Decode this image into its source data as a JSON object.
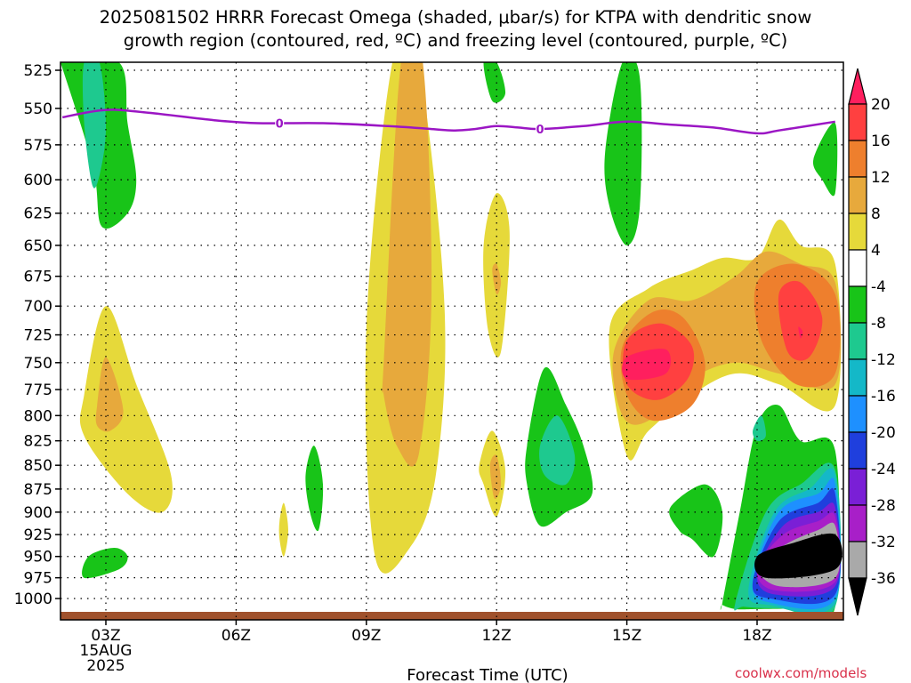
{
  "chart_data": {
    "type": "heatmap",
    "title_line1": "2025081502 HRRR Forecast Omega (shaded, μbar/s) for KTPA with dendritic snow",
    "title_line2": "growth region (contoured, red, ºC) and freezing level (contoured, purple, ºC)",
    "xlabel": "Forecast Time (UTC)",
    "x_ticks": [
      {
        "label": "03Z",
        "hour": 3
      },
      {
        "label": "06Z",
        "hour": 6
      },
      {
        "label": "09Z",
        "hour": 9
      },
      {
        "label": "12Z",
        "hour": 12
      },
      {
        "label": "15Z",
        "hour": 15
      },
      {
        "label": "18Z",
        "hour": 18
      }
    ],
    "x_date_line1": "15AUG",
    "x_date_line2": "2025",
    "xlim": [
      2.0,
      19.8
    ],
    "y_ticks": [
      525,
      550,
      575,
      600,
      625,
      650,
      675,
      700,
      725,
      750,
      775,
      800,
      825,
      850,
      875,
      900,
      925,
      950,
      975,
      1000
    ],
    "ylim": [
      1015,
      515
    ],
    "y_scale": "log-pressure",
    "grid": true,
    "colorbar": {
      "labels": [
        "20",
        "16",
        "12",
        "8",
        "4",
        "-4",
        "-8",
        "-12",
        "-16",
        "-20",
        "-24",
        "-28",
        "-32",
        "-36"
      ],
      "colors": [
        "#ff1f5e",
        "#ff4040",
        "#ee7f2d",
        "#e7a93c",
        "#e6d93a",
        "#ffffff",
        "#18c418",
        "#1ec98f",
        "#14b8c8",
        "#1e90ff",
        "#1f3fdd",
        "#7a1fd6",
        "#a81fc8",
        "#a9a9a9",
        "#000000"
      ]
    },
    "freezing_level": {
      "label": "0",
      "points": [
        [
          2.0,
          556
        ],
        [
          3.0,
          551
        ],
        [
          4.0,
          553
        ],
        [
          5.5,
          558
        ],
        [
          6.5,
          560
        ],
        [
          8.0,
          560
        ],
        [
          9.5,
          562
        ],
        [
          10.5,
          564
        ],
        [
          11.0,
          565
        ],
        [
          11.5,
          564
        ],
        [
          12.0,
          562
        ],
        [
          12.5,
          563
        ],
        [
          13.0,
          564
        ],
        [
          14.0,
          562
        ],
        [
          15.0,
          559
        ],
        [
          16.0,
          561
        ],
        [
          17.0,
          563
        ],
        [
          18.0,
          567
        ],
        [
          18.5,
          565
        ],
        [
          19.8,
          559
        ]
      ]
    },
    "omega_regions": [
      {
        "value": -8,
        "hr": [
          1.9,
          3.3,
          3.5,
          3.7,
          3.5,
          2.9,
          2.7,
          1.9
        ],
        "p": [
          515,
          515,
          560,
          600,
          625,
          635,
          590,
          515
        ]
      },
      {
        "value": -12,
        "hr": [
          2.5,
          2.85,
          3.0,
          2.9,
          2.7,
          2.5
        ],
        "p": [
          515,
          515,
          560,
          590,
          605,
          560
        ]
      },
      {
        "value": 4,
        "hr": [
          2.5,
          3.0,
          3.7,
          4.5,
          4.3,
          3.5,
          2.5
        ],
        "p": [
          780,
          700,
          770,
          860,
          900,
          880,
          820
        ]
      },
      {
        "value": 8,
        "hr": [
          2.8,
          3.0,
          3.4,
          3.1,
          2.8
        ],
        "p": [
          790,
          745,
          795,
          815,
          810
        ]
      },
      {
        "value": 4,
        "hr": [
          9.0,
          9.6,
          10.2,
          10.8,
          10.6,
          10.0,
          9.2
        ],
        "p": [
          720,
          515,
          515,
          700,
          860,
          940,
          950
        ]
      },
      {
        "value": 8,
        "hr": [
          9.4,
          9.8,
          10.3,
          10.5,
          10.2,
          9.7,
          9.4
        ],
        "p": [
          750,
          515,
          515,
          690,
          840,
          830,
          780
        ]
      },
      {
        "value": -8,
        "hr": [
          2.6,
          3.2,
          3.5,
          3.3,
          2.5
        ],
        "p": [
          950,
          940,
          950,
          965,
          975
        ]
      },
      {
        "value": 4,
        "hr": [
          7.0,
          7.1,
          7.2,
          7.1,
          7.0
        ],
        "p": [
          910,
          890,
          920,
          950,
          930
        ]
      },
      {
        "value": -8,
        "hr": [
          7.6,
          7.8,
          8.0,
          7.9,
          7.7
        ],
        "p": [
          860,
          830,
          870,
          920,
          900
        ]
      },
      {
        "value": 4,
        "hr": [
          11.7,
          12.0,
          12.3,
          12.1,
          11.8
        ],
        "p": [
          650,
          610,
          640,
          740,
          720
        ]
      },
      {
        "value": 8,
        "hr": [
          11.9,
          12.0,
          12.1,
          12.0
        ],
        "p": [
          670,
          665,
          680,
          690
        ]
      },
      {
        "value": 4,
        "hr": [
          11.6,
          11.9,
          12.2,
          12.0,
          11.7
        ],
        "p": [
          850,
          815,
          855,
          905,
          870
        ]
      },
      {
        "value": 8,
        "hr": [
          11.85,
          12.0,
          12.1,
          11.95
        ],
        "p": [
          850,
          840,
          870,
          885
        ]
      },
      {
        "value": -8,
        "hr": [
          11.7,
          12.0,
          12.2,
          11.9
        ],
        "p": [
          515,
          515,
          540,
          545
        ]
      },
      {
        "value": -8,
        "hr": [
          12.7,
          13.1,
          13.6,
          14.0,
          14.2,
          13.6,
          13.0,
          12.7
        ],
        "p": [
          830,
          755,
          790,
          830,
          880,
          900,
          915,
          870
        ]
      },
      {
        "value": -12,
        "hr": [
          13.0,
          13.4,
          13.8,
          13.6,
          13.1
        ],
        "p": [
          830,
          800,
          840,
          870,
          860
        ]
      },
      {
        "value": -8,
        "hr": [
          14.5,
          14.9,
          15.3,
          15.3,
          15.0,
          14.6
        ],
        "p": [
          580,
          515,
          530,
          620,
          650,
          620
        ]
      },
      {
        "value": 4,
        "hr": [
          14.6,
          15.5,
          16.5,
          17.2,
          18.0,
          18.5,
          19.0,
          19.8,
          19.8,
          18.5,
          17.5,
          16.5,
          15.5,
          15.0
        ],
        "p": [
          720,
          685,
          670,
          660,
          660,
          630,
          650,
          665,
          790,
          770,
          760,
          780,
          815,
          840
        ]
      },
      {
        "value": 8,
        "hr": [
          14.7,
          15.5,
          16.5,
          17.5,
          18.2,
          19.0,
          19.8,
          19.8,
          18.5,
          17.5,
          16.5,
          15.5,
          14.9
        ],
        "p": [
          740,
          695,
          695,
          675,
          655,
          665,
          680,
          770,
          760,
          750,
          765,
          805,
          800
        ]
      },
      {
        "value": 12,
        "hr": [
          14.9,
          15.6,
          16.3,
          16.8,
          16.5,
          15.6,
          15.0
        ],
        "p": [
          735,
          705,
          710,
          750,
          790,
          805,
          780
        ]
      },
      {
        "value": 12,
        "hr": [
          18.0,
          18.9,
          19.8,
          19.8,
          18.9,
          18.1
        ],
        "p": [
          680,
          665,
          690,
          760,
          770,
          730
        ]
      },
      {
        "value": 16,
        "hr": [
          15.0,
          15.8,
          16.5,
          16.4,
          15.7,
          15.0
        ],
        "p": [
          730,
          715,
          735,
          765,
          785,
          770
        ]
      },
      {
        "value": 16,
        "hr": [
          18.5,
          19.0,
          19.5,
          19.2,
          18.7
        ],
        "p": [
          690,
          680,
          710,
          745,
          740
        ]
      },
      {
        "value": 20,
        "hr": [
          15.0,
          15.9,
          15.9,
          15.0
        ],
        "p": [
          745,
          738,
          760,
          765
        ]
      },
      {
        "value": 20,
        "hr": [
          18.95,
          19.05,
          19.0
        ],
        "p": [
          718,
          722,
          728
        ]
      },
      {
        "value": -8,
        "hr": [
          17.2,
          17.6,
          18.0,
          18.5,
          19.0,
          19.8,
          19.8,
          19.0,
          18.0,
          17.5,
          17.2
        ],
        "p": [
          1005,
          900,
          810,
          790,
          825,
          835,
          1010,
          1012,
          1013,
          1013,
          1008
        ]
      },
      {
        "value": -8,
        "hr": [
          16.0,
          16.8,
          17.2,
          17.0,
          16.5,
          16.2
        ],
        "p": [
          895,
          870,
          900,
          950,
          930,
          920
        ]
      },
      {
        "value": -8,
        "hr": [
          19.3,
          19.8,
          19.8,
          19.5
        ],
        "p": [
          585,
          560,
          610,
          600
        ]
      },
      {
        "value": -12,
        "hr": [
          17.5,
          18.2,
          19.0,
          19.8,
          19.8,
          18.5,
          17.7
        ],
        "p": [
          1005,
          900,
          870,
          855,
          1010,
          1012,
          1010
        ]
      },
      {
        "value": -12,
        "hr": [
          17.9,
          18.1,
          18.2,
          18.0
        ],
        "p": [
          815,
          800,
          820,
          825
        ]
      },
      {
        "value": -16,
        "hr": [
          17.8,
          18.4,
          19.2,
          19.8,
          19.8,
          18.3
        ],
        "p": [
          990,
          900,
          875,
          860,
          1005,
          1008
        ]
      },
      {
        "value": -20,
        "hr": [
          17.9,
          18.5,
          19.4,
          19.8,
          19.8,
          18.3
        ],
        "p": [
          980,
          900,
          880,
          870,
          1000,
          1005
        ]
      },
      {
        "value": -24,
        "hr": [
          17.9,
          18.5,
          19.4,
          19.8,
          19.8,
          18.3
        ],
        "p": [
          980,
          910,
          890,
          880,
          995,
          1000
        ]
      },
      {
        "value": -28,
        "hr": [
          18.0,
          18.6,
          19.4,
          19.8,
          19.8,
          18.4
        ],
        "p": [
          970,
          915,
          900,
          895,
          985,
          995
        ]
      },
      {
        "value": -32,
        "hr": [
          18.0,
          18.6,
          19.4,
          19.8,
          19.8,
          18.4
        ],
        "p": [
          965,
          925,
          910,
          905,
          980,
          990
        ]
      },
      {
        "value": -36,
        "hr": [
          18.0,
          18.7,
          19.4,
          19.8,
          19.8,
          18.5
        ],
        "p": [
          960,
          935,
          920,
          915,
          975,
          985
        ]
      },
      {
        "value": -40,
        "hr": [
          18.0,
          18.8,
          19.8,
          19.8,
          18.2
        ],
        "p": [
          950,
          935,
          925,
          965,
          975
        ]
      }
    ]
  },
  "credit": "coolwx.com/models"
}
